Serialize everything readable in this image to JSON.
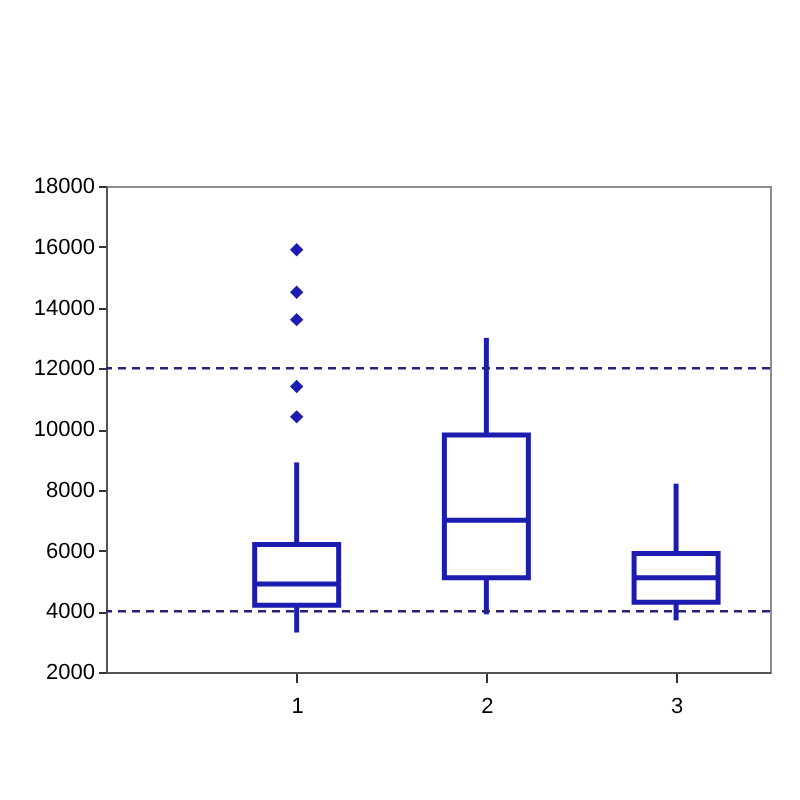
{
  "chart_data": {
    "type": "box",
    "categories": [
      "1",
      "2",
      "3"
    ],
    "boxes": [
      {
        "low": 3300,
        "q1": 4200,
        "median": 4900,
        "q3": 6200,
        "high": 8900,
        "outliers": [
          10400,
          11400,
          13600,
          14500,
          15900
        ]
      },
      {
        "low": 3900,
        "q1": 5100,
        "median": 7000,
        "q3": 9800,
        "high": 13000
      },
      {
        "low": 3700,
        "q1": 4300,
        "median": 5100,
        "q3": 5900,
        "high": 8200
      }
    ],
    "color": "#1c1cb0",
    "marker": "diamond",
    "ylim": [
      2000,
      18000
    ],
    "yticks": [
      2000,
      4000,
      6000,
      8000,
      10000,
      12000,
      14000,
      16000,
      18000
    ],
    "ref_lines": [
      {
        "axis": "y",
        "value": 4000,
        "color": "#23237a",
        "line_style": "dashed"
      },
      {
        "axis": "y",
        "value": 12000,
        "color": "#23237a",
        "line_style": "dashed"
      }
    ]
  }
}
